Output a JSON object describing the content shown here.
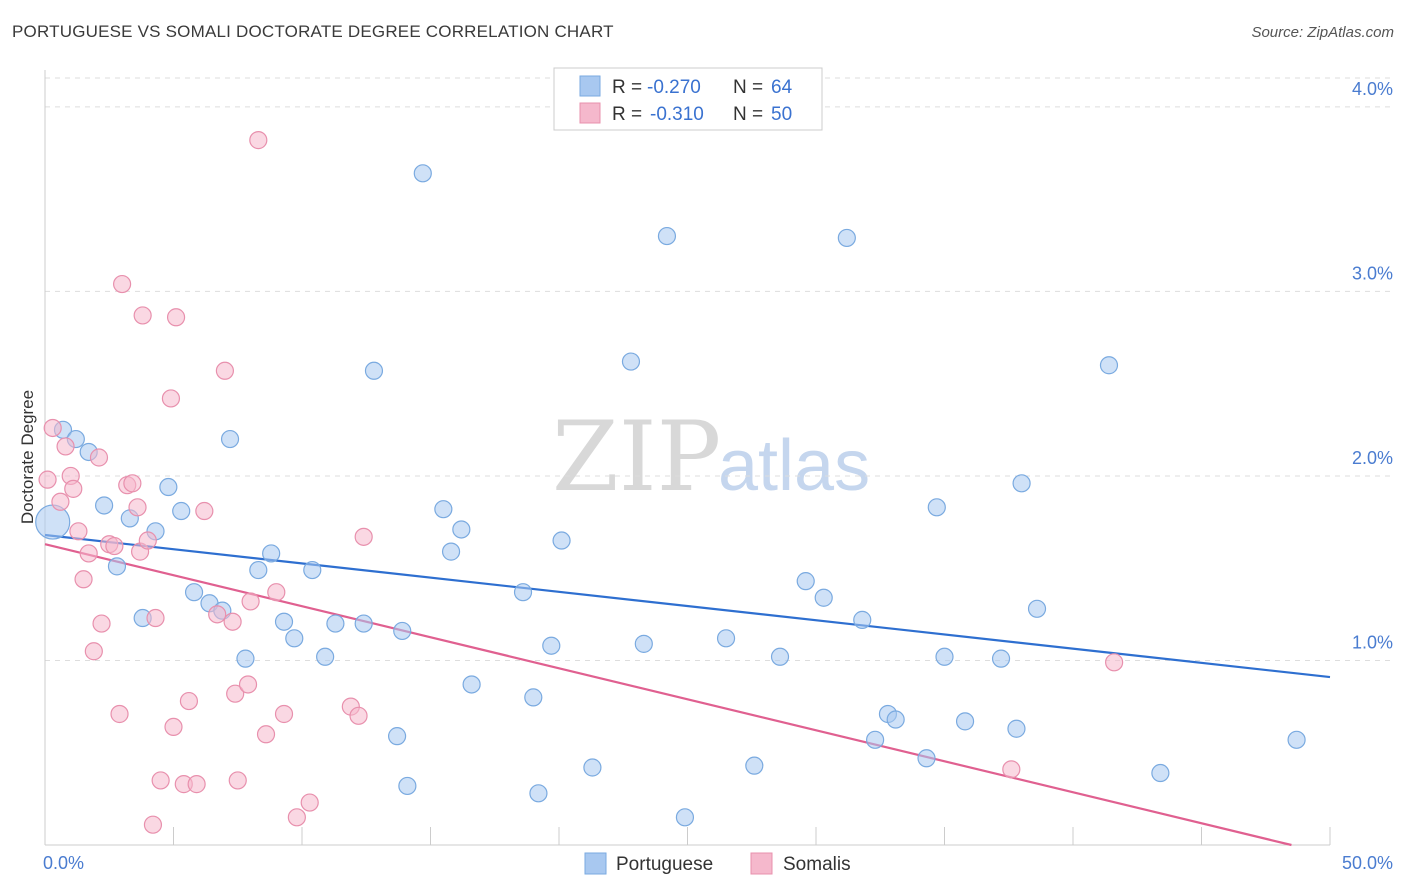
{
  "title": "PORTUGUESE VS SOMALI DOCTORATE DEGREE CORRELATION CHART",
  "source": "Source: ZipAtlas.com",
  "watermark": {
    "zip": "ZIP",
    "atlas": "atlas"
  },
  "colors": {
    "portuguese_fill": "#a8c8f0",
    "portuguese_stroke": "#7aaae0",
    "portuguese_line": "#2e6fd0",
    "somali_fill": "#f5b8cc",
    "somali_stroke": "#e890ad",
    "somali_line": "#e06090",
    "tick_label": "#4a7cd0",
    "grid": "#dddddd"
  },
  "legend_top": [
    {
      "r_label": "R = ",
      "r_value": "-0.270",
      "n_label": "N = ",
      "n_value": "64"
    },
    {
      "r_label": "R = ",
      "r_value": "-0.310",
      "n_label": "N = ",
      "n_value": "50"
    }
  ],
  "legend_bottom": [
    "Portuguese",
    "Somalis"
  ],
  "chart_data": {
    "type": "scatter",
    "xlabel": "",
    "ylabel": "Doctorate Degree",
    "xlim": [
      0,
      50
    ],
    "ylim": [
      0,
      4.2
    ],
    "x_tick_labels": [
      "0.0%",
      "50.0%"
    ],
    "y_ticks": [
      1,
      2,
      3,
      4
    ],
    "y_tick_labels": [
      "1.0%",
      "2.0%",
      "3.0%",
      "4.0%"
    ],
    "grid": "horizontal dashed",
    "legend": "top-center and bottom-center",
    "series": [
      {
        "name": "Portuguese",
        "trend": {
          "x": [
            0,
            50
          ],
          "y": [
            1.68,
            0.91
          ]
        },
        "points": [
          [
            0.3,
            1.75
          ],
          [
            0.7,
            2.25
          ],
          [
            1.2,
            2.2
          ],
          [
            1.7,
            2.13
          ],
          [
            2.3,
            1.84
          ],
          [
            2.8,
            1.51
          ],
          [
            3.3,
            1.77
          ],
          [
            3.8,
            1.23
          ],
          [
            4.3,
            1.7
          ],
          [
            4.8,
            1.94
          ],
          [
            5.3,
            1.81
          ],
          [
            5.8,
            1.37
          ],
          [
            6.4,
            1.31
          ],
          [
            6.9,
            1.27
          ],
          [
            7.2,
            2.2
          ],
          [
            7.8,
            1.01
          ],
          [
            8.3,
            1.49
          ],
          [
            8.8,
            1.58
          ],
          [
            9.3,
            1.21
          ],
          [
            9.7,
            1.12
          ],
          [
            10.4,
            1.49
          ],
          [
            10.9,
            1.02
          ],
          [
            11.3,
            1.2
          ],
          [
            12.4,
            1.2
          ],
          [
            12.8,
            2.57
          ],
          [
            13.7,
            0.59
          ],
          [
            13.9,
            1.16
          ],
          [
            14.1,
            0.32
          ],
          [
            14.7,
            3.64
          ],
          [
            15.5,
            1.82
          ],
          [
            15.8,
            1.59
          ],
          [
            16.2,
            1.71
          ],
          [
            16.6,
            0.87
          ],
          [
            18.6,
            1.37
          ],
          [
            19.0,
            0.8
          ],
          [
            19.2,
            0.28
          ],
          [
            19.7,
            1.08
          ],
          [
            20.1,
            1.65
          ],
          [
            21.3,
            0.42
          ],
          [
            22.8,
            2.62
          ],
          [
            23.3,
            1.09
          ],
          [
            24.2,
            3.3
          ],
          [
            24.9,
            0.15
          ],
          [
            26.5,
            1.12
          ],
          [
            27.6,
            0.43
          ],
          [
            28.6,
            1.02
          ],
          [
            29.6,
            1.43
          ],
          [
            30.3,
            1.34
          ],
          [
            31.2,
            3.29
          ],
          [
            31.8,
            1.22
          ],
          [
            32.3,
            0.57
          ],
          [
            32.8,
            0.71
          ],
          [
            33.1,
            0.68
          ],
          [
            34.3,
            0.47
          ],
          [
            34.7,
            1.83
          ],
          [
            35.0,
            1.02
          ],
          [
            35.8,
            0.67
          ],
          [
            37.2,
            1.01
          ],
          [
            37.8,
            0.63
          ],
          [
            38.0,
            1.96
          ],
          [
            38.6,
            1.28
          ],
          [
            41.4,
            2.6
          ],
          [
            43.4,
            0.39
          ],
          [
            48.7,
            0.57
          ]
        ],
        "sizes_note": "first point drawn larger"
      },
      {
        "name": "Somalis",
        "trend": {
          "x": [
            0,
            48.5
          ],
          "y": [
            1.63,
            0.0
          ]
        },
        "points": [
          [
            0.1,
            1.98
          ],
          [
            0.3,
            2.26
          ],
          [
            0.6,
            1.86
          ],
          [
            0.8,
            2.16
          ],
          [
            1.0,
            2.0
          ],
          [
            1.1,
            1.93
          ],
          [
            1.3,
            1.7
          ],
          [
            1.5,
            1.44
          ],
          [
            1.7,
            1.58
          ],
          [
            1.9,
            1.05
          ],
          [
            2.1,
            2.1
          ],
          [
            2.2,
            1.2
          ],
          [
            2.5,
            1.63
          ],
          [
            2.7,
            1.62
          ],
          [
            2.9,
            0.71
          ],
          [
            3.0,
            3.04
          ],
          [
            3.2,
            1.95
          ],
          [
            3.4,
            1.96
          ],
          [
            3.6,
            1.83
          ],
          [
            3.7,
            1.59
          ],
          [
            3.8,
            2.87
          ],
          [
            4.0,
            1.65
          ],
          [
            4.2,
            0.11
          ],
          [
            4.3,
            1.23
          ],
          [
            4.5,
            0.35
          ],
          [
            4.9,
            2.42
          ],
          [
            5.0,
            0.64
          ],
          [
            5.1,
            2.86
          ],
          [
            5.4,
            0.33
          ],
          [
            5.6,
            0.78
          ],
          [
            5.9,
            0.33
          ],
          [
            6.2,
            1.81
          ],
          [
            6.7,
            1.25
          ],
          [
            7.0,
            2.57
          ],
          [
            7.3,
            1.21
          ],
          [
            7.4,
            0.82
          ],
          [
            7.5,
            0.35
          ],
          [
            7.9,
            0.87
          ],
          [
            8.0,
            1.32
          ],
          [
            8.3,
            3.82
          ],
          [
            8.6,
            0.6
          ],
          [
            9.0,
            1.37
          ],
          [
            9.3,
            0.71
          ],
          [
            9.8,
            0.15
          ],
          [
            10.3,
            0.23
          ],
          [
            11.9,
            0.75
          ],
          [
            12.2,
            0.7
          ],
          [
            12.4,
            1.67
          ],
          [
            37.6,
            0.41
          ],
          [
            41.6,
            0.99
          ]
        ]
      }
    ]
  }
}
